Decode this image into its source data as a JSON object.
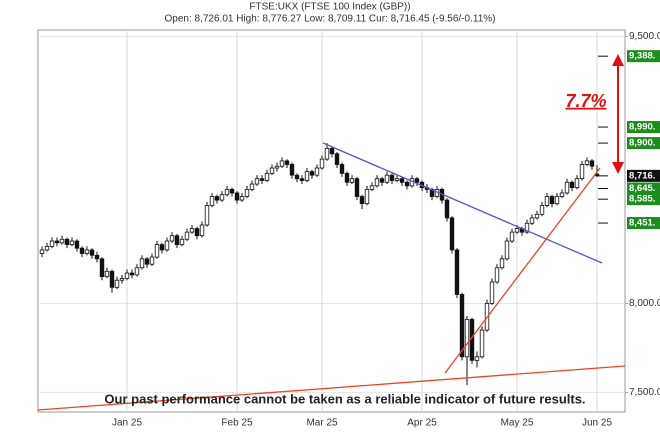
{
  "chart_data": {
    "type": "candlestick",
    "title": "FTSE:UKX (FTSE 100 Index (GBP))",
    "subtitle": "Open: 8,726.01 High: 8,776.27 Low: 8,709.11 Cur: 8,716.45 (-9.56/-0.11%)",
    "annotation": "7.7%",
    "disclaimer": "Our past performance cannot be taken as a reliable indicator of future results.",
    "categories": [
      null,
      null,
      null,
      null,
      null,
      null,
      null,
      null,
      null,
      null,
      null,
      null,
      null,
      null,
      null,
      null,
      null,
      "Jan 25",
      null,
      null,
      null,
      null,
      null,
      null,
      null,
      null,
      null,
      null,
      null,
      null,
      null,
      null,
      null,
      null,
      null,
      null,
      null,
      null,
      null,
      "Feb 25",
      null,
      null,
      null,
      null,
      null,
      null,
      null,
      null,
      null,
      null,
      null,
      null,
      null,
      null,
      null,
      null,
      "Mar 25",
      null,
      null,
      null,
      null,
      null,
      null,
      null,
      null,
      null,
      null,
      null,
      null,
      null,
      null,
      null,
      null,
      null,
      null,
      null,
      "Apr 25",
      null,
      null,
      null,
      null,
      null,
      null,
      null,
      null,
      null,
      null,
      null,
      null,
      null,
      null,
      null,
      null,
      null,
      null,
      "May 25",
      null,
      null,
      null,
      null,
      null,
      null,
      null,
      null,
      null,
      null,
      null,
      null,
      null,
      null,
      null,
      "Jun 25"
    ],
    "ohlc": [
      [
        8280,
        8320,
        8260,
        8300
      ],
      [
        8300,
        8340,
        8290,
        8320
      ],
      [
        8320,
        8370,
        8310,
        8350
      ],
      [
        8350,
        8370,
        8320,
        8340
      ],
      [
        8340,
        8380,
        8330,
        8360
      ],
      [
        8360,
        8370,
        8310,
        8330
      ],
      [
        8330,
        8370,
        8320,
        8350
      ],
      [
        8350,
        8360,
        8290,
        8310
      ],
      [
        8310,
        8320,
        8260,
        8280
      ],
      [
        8280,
        8320,
        8270,
        8300
      ],
      [
        8300,
        8310,
        8250,
        8270
      ],
      [
        8270,
        8290,
        8230,
        8250
      ],
      [
        8250,
        8260,
        8130,
        8150
      ],
      [
        8150,
        8200,
        8140,
        8180
      ],
      [
        8180,
        8190,
        8060,
        8090
      ],
      [
        8090,
        8150,
        8080,
        8130
      ],
      [
        8130,
        8160,
        8110,
        8140
      ],
      [
        8140,
        8190,
        8130,
        8170
      ],
      [
        8170,
        8190,
        8140,
        8160
      ],
      [
        8160,
        8220,
        8150,
        8200
      ],
      [
        8200,
        8270,
        8190,
        8250
      ],
      [
        8250,
        8260,
        8200,
        8220
      ],
      [
        8220,
        8280,
        8210,
        8260
      ],
      [
        8260,
        8350,
        8250,
        8330
      ],
      [
        8330,
        8340,
        8280,
        8300
      ],
      [
        8300,
        8370,
        8290,
        8350
      ],
      [
        8350,
        8400,
        8340,
        8380
      ],
      [
        8380,
        8390,
        8310,
        8330
      ],
      [
        8330,
        8380,
        8320,
        8360
      ],
      [
        8360,
        8420,
        8350,
        8400
      ],
      [
        8400,
        8440,
        8390,
        8420
      ],
      [
        8420,
        8430,
        8360,
        8380
      ],
      [
        8380,
        8460,
        8370,
        8440
      ],
      [
        8440,
        8570,
        8430,
        8550
      ],
      [
        8550,
        8620,
        8540,
        8600
      ],
      [
        8600,
        8610,
        8560,
        8580
      ],
      [
        8580,
        8630,
        8570,
        8610
      ],
      [
        8610,
        8660,
        8600,
        8640
      ],
      [
        8640,
        8650,
        8600,
        8620
      ],
      [
        8620,
        8630,
        8560,
        8580
      ],
      [
        8580,
        8620,
        8570,
        8600
      ],
      [
        8600,
        8660,
        8590,
        8640
      ],
      [
        8640,
        8690,
        8630,
        8670
      ],
      [
        8670,
        8720,
        8660,
        8700
      ],
      [
        8700,
        8720,
        8670,
        8690
      ],
      [
        8690,
        8750,
        8680,
        8730
      ],
      [
        8730,
        8780,
        8720,
        8760
      ],
      [
        8760,
        8790,
        8740,
        8770
      ],
      [
        8770,
        8820,
        8760,
        8800
      ],
      [
        8800,
        8810,
        8760,
        8780
      ],
      [
        8780,
        8790,
        8700,
        8720
      ],
      [
        8720,
        8730,
        8680,
        8700
      ],
      [
        8700,
        8720,
        8670,
        8690
      ],
      [
        8690,
        8760,
        8680,
        8740
      ],
      [
        8740,
        8750,
        8700,
        8720
      ],
      [
        8720,
        8780,
        8710,
        8760
      ],
      [
        8760,
        8830,
        8750,
        8810
      ],
      [
        8810,
        8900,
        8800,
        8870
      ],
      [
        8870,
        8880,
        8820,
        8840
      ],
      [
        8840,
        8850,
        8760,
        8780
      ],
      [
        8780,
        8790,
        8710,
        8730
      ],
      [
        8730,
        8740,
        8660,
        8680
      ],
      [
        8680,
        8720,
        8670,
        8700
      ],
      [
        8700,
        8710,
        8580,
        8600
      ],
      [
        8600,
        8610,
        8530,
        8560
      ],
      [
        8560,
        8660,
        8550,
        8640
      ],
      [
        8640,
        8680,
        8630,
        8660
      ],
      [
        8660,
        8720,
        8650,
        8700
      ],
      [
        8700,
        8710,
        8660,
        8680
      ],
      [
        8680,
        8740,
        8670,
        8720
      ],
      [
        8720,
        8730,
        8670,
        8690
      ],
      [
        8690,
        8720,
        8680,
        8700
      ],
      [
        8700,
        8710,
        8660,
        8680
      ],
      [
        8680,
        8690,
        8640,
        8660
      ],
      [
        8660,
        8720,
        8650,
        8700
      ],
      [
        8700,
        8710,
        8660,
        8680
      ],
      [
        8680,
        8690,
        8630,
        8650
      ],
      [
        8650,
        8670,
        8620,
        8640
      ],
      [
        8640,
        8650,
        8580,
        8600
      ],
      [
        8600,
        8660,
        8590,
        8640
      ],
      [
        8640,
        8650,
        8560,
        8580
      ],
      [
        8580,
        8590,
        8460,
        8480
      ],
      [
        8480,
        8490,
        8280,
        8300
      ],
      [
        8300,
        8310,
        8030,
        8050
      ],
      [
        8050,
        8060,
        7680,
        7700
      ],
      [
        7700,
        7930,
        7540,
        7910
      ],
      [
        7910,
        7920,
        7660,
        7680
      ],
      [
        7680,
        7730,
        7640,
        7700
      ],
      [
        7700,
        7870,
        7690,
        7850
      ],
      [
        7850,
        8020,
        7840,
        8000
      ],
      [
        8000,
        8140,
        7990,
        8120
      ],
      [
        8120,
        8220,
        8110,
        8200
      ],
      [
        8200,
        8270,
        8190,
        8250
      ],
      [
        8250,
        8370,
        8240,
        8350
      ],
      [
        8350,
        8420,
        8340,
        8400
      ],
      [
        8400,
        8440,
        8390,
        8420
      ],
      [
        8420,
        8430,
        8380,
        8400
      ],
      [
        8400,
        8470,
        8390,
        8450
      ],
      [
        8450,
        8500,
        8440,
        8480
      ],
      [
        8480,
        8520,
        8470,
        8500
      ],
      [
        8500,
        8570,
        8490,
        8550
      ],
      [
        8550,
        8620,
        8540,
        8600
      ],
      [
        8600,
        8610,
        8540,
        8560
      ],
      [
        8560,
        8620,
        8550,
        8600
      ],
      [
        8600,
        8640,
        8590,
        8620
      ],
      [
        8620,
        8700,
        8610,
        8680
      ],
      [
        8680,
        8690,
        8630,
        8650
      ],
      [
        8650,
        8720,
        8640,
        8700
      ],
      [
        8700,
        8800,
        8690,
        8780
      ],
      [
        8780,
        8820,
        8770,
        8800
      ],
      [
        8800,
        8810,
        8750,
        8770
      ],
      [
        8726.01,
        8776.27,
        8709.11,
        8716.45
      ]
    ],
    "ylim": [
      7390,
      9535
    ],
    "yticks": [
      {
        "value": 9500,
        "label": "9,500.0"
      },
      {
        "value": 8000,
        "label": "8,000.0"
      },
      {
        "value": 7500,
        "label": "7,500.0"
      }
    ],
    "levels": [
      {
        "value": 9388,
        "label": "9,388.",
        "color": "#1e8c1e"
      },
      {
        "value": 8990,
        "label": "8,990.",
        "color": "#1e8c1e"
      },
      {
        "value": 8900,
        "label": "8,900.",
        "color": "#1e8c1e"
      },
      {
        "value": 8716,
        "label": "8,716.",
        "color": "#111111"
      },
      {
        "value": 8645,
        "label": "8,645.",
        "color": "#1e8c1e"
      },
      {
        "value": 8585,
        "label": "8,585.",
        "color": "#1e8c1e"
      },
      {
        "value": 8451,
        "label": "8,451.",
        "color": "#1e8c1e"
      }
    ],
    "grid": true
  }
}
